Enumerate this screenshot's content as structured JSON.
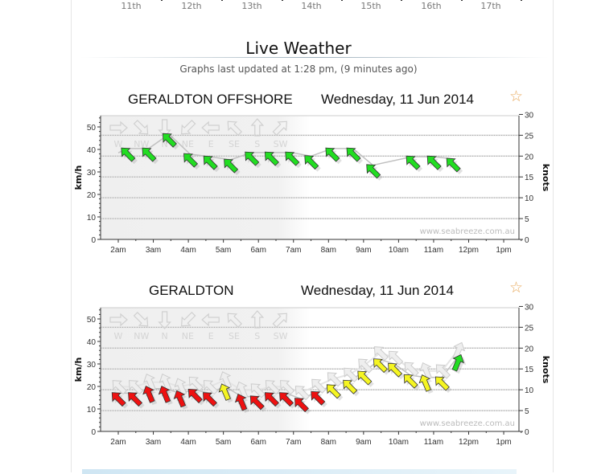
{
  "date_strip": {
    "days": [
      "11th",
      "12th",
      "13th",
      "14th",
      "15th",
      "16th",
      "17th"
    ]
  },
  "section_title": "Live Weather",
  "updated_text": "Graphs last updated at 1:28 pm, (9 minutes ago)",
  "watermark": "www.seabreeze.com.au",
  "colors": {
    "green": "#22dd22",
    "red": "#ee1111",
    "yellow": "#f5f522",
    "star": "#e8a95c"
  },
  "chart_data": [
    {
      "type": "line",
      "station": "GERALDTON OFFSHORE",
      "date": "Wednesday, 11 Jun 2014",
      "favorite_icon": "star-outline-icon",
      "ylabel": "km/h",
      "y2label": "knots",
      "ylim": [
        0,
        55
      ],
      "y2lim": [
        0,
        30
      ],
      "yticks": [
        "0",
        "10",
        "20",
        "30",
        "40",
        "50"
      ],
      "y2ticks": [
        "0",
        "5",
        "10",
        "15",
        "20",
        "25",
        "30"
      ],
      "xticks": [
        "2am",
        "3am",
        "4am",
        "5am",
        "6am",
        "7am",
        "8am",
        "9am",
        "10am",
        "11am",
        "12pm",
        "1pm"
      ],
      "direction_legend": [
        "W",
        "NW",
        "N",
        "NE",
        "E",
        "SE",
        "S",
        "SW"
      ],
      "points": [
        {
          "t": "02:00",
          "kmh": 38.5,
          "arrow": false
        },
        {
          "t": "02:16",
          "kmh": 40.4,
          "dir": "SE",
          "color": "green"
        },
        {
          "t": "02:52",
          "kmh": 40.4,
          "dir": "SE",
          "color": "green"
        },
        {
          "t": "03:27",
          "kmh": 46.8,
          "dir": "SE",
          "color": "green"
        },
        {
          "t": "04:03",
          "kmh": 37.9,
          "dir": "SE",
          "color": "green"
        },
        {
          "t": "04:37",
          "kmh": 36.8,
          "dir": "SE",
          "color": "green"
        },
        {
          "t": "05:12",
          "kmh": 35.4,
          "dir": "SE",
          "color": "green"
        },
        {
          "t": "05:48",
          "kmh": 38.6,
          "dir": "SE",
          "color": "green"
        },
        {
          "t": "06:22",
          "kmh": 38.6,
          "dir": "SE",
          "color": "green"
        },
        {
          "t": "06:57",
          "kmh": 38.6,
          "dir": "SE",
          "color": "green"
        },
        {
          "t": "07:30",
          "kmh": 37.0,
          "dir": "SE",
          "color": "green"
        },
        {
          "t": "08:06",
          "kmh": 40.4,
          "dir": "SE",
          "color": "green"
        },
        {
          "t": "08:42",
          "kmh": 40.4,
          "dir": "SE",
          "color": "green"
        },
        {
          "t": "09:16",
          "kmh": 33.0,
          "dir": "SE",
          "color": "green"
        },
        {
          "t": "10:24",
          "kmh": 36.8,
          "dir": "SE",
          "color": "green"
        },
        {
          "t": "11:00",
          "kmh": 36.8,
          "dir": "SE",
          "color": "green"
        },
        {
          "t": "11:33",
          "kmh": 35.8,
          "dir": "SE",
          "color": "green"
        }
      ]
    },
    {
      "type": "line",
      "station": "GERALDTON",
      "date": "Wednesday, 11 Jun 2014",
      "favorite_icon": "star-outline-icon",
      "ylabel": "km/h",
      "y2label": "knots",
      "ylim": [
        0,
        55
      ],
      "y2lim": [
        0,
        30
      ],
      "yticks": [
        "0",
        "10",
        "20",
        "30",
        "40",
        "50"
      ],
      "y2ticks": [
        "0",
        "5",
        "10",
        "15",
        "20",
        "25",
        "30"
      ],
      "xticks": [
        "2am",
        "3am",
        "4am",
        "5am",
        "6am",
        "7am",
        "8am",
        "9am",
        "10am",
        "11am",
        "12pm",
        "1pm"
      ],
      "direction_legend": [
        "W",
        "NW",
        "N",
        "NE",
        "E",
        "SE",
        "S",
        "SW"
      ],
      "points": [
        {
          "t": "01:50",
          "kmh": 13,
          "arrow": false
        },
        {
          "t": "02:00",
          "kmh": 17,
          "dir": "SE",
          "color": "red"
        },
        {
          "t": "02:28",
          "kmh": 17,
          "dir": "SE",
          "color": "red"
        },
        {
          "t": "02:53",
          "kmh": 19,
          "dir": "SSE",
          "color": "red"
        },
        {
          "t": "03:20",
          "kmh": 19,
          "dir": "SSE",
          "color": "red"
        },
        {
          "t": "03:46",
          "kmh": 17,
          "dir": "SSE",
          "color": "red"
        },
        {
          "t": "04:11",
          "kmh": 18.5,
          "dir": "SE",
          "color": "red"
        },
        {
          "t": "04:36",
          "kmh": 17,
          "dir": "SE",
          "color": "red"
        },
        {
          "t": "05:03",
          "kmh": 20,
          "dir": "SSE",
          "color": "yellow"
        },
        {
          "t": "05:31",
          "kmh": 15.5,
          "dir": "SSE",
          "color": "red"
        },
        {
          "t": "05:57",
          "kmh": 15.5,
          "dir": "SE",
          "color": "red"
        },
        {
          "t": "06:22",
          "kmh": 17,
          "dir": "SE",
          "color": "red"
        },
        {
          "t": "06:47",
          "kmh": 17,
          "dir": "SE",
          "color": "red"
        },
        {
          "t": "07:13",
          "kmh": 14.5,
          "dir": "SE",
          "color": "red"
        },
        {
          "t": "07:41",
          "kmh": 17.5,
          "dir": "SE",
          "color": "red"
        },
        {
          "t": "08:08",
          "kmh": 20.5,
          "dir": "SE",
          "color": "yellow"
        },
        {
          "t": "08:36",
          "kmh": 22.5,
          "dir": "SE",
          "color": "yellow"
        },
        {
          "t": "09:01",
          "kmh": 26.5,
          "dir": "SE",
          "color": "yellow"
        },
        {
          "t": "09:28",
          "kmh": 32,
          "dir": "SE",
          "color": "yellow"
        },
        {
          "t": "09:53",
          "kmh": 30,
          "dir": "SE",
          "color": "yellow"
        },
        {
          "t": "10:20",
          "kmh": 25,
          "dir": "SE",
          "color": "yellow"
        },
        {
          "t": "10:46",
          "kmh": 24,
          "dir": "SSE",
          "color": "yellow"
        },
        {
          "t": "11:14",
          "kmh": 24,
          "dir": "SE",
          "color": "yellow"
        },
        {
          "t": "11:41",
          "kmh": 33,
          "dir": "SSW",
          "color": "green"
        }
      ]
    }
  ]
}
